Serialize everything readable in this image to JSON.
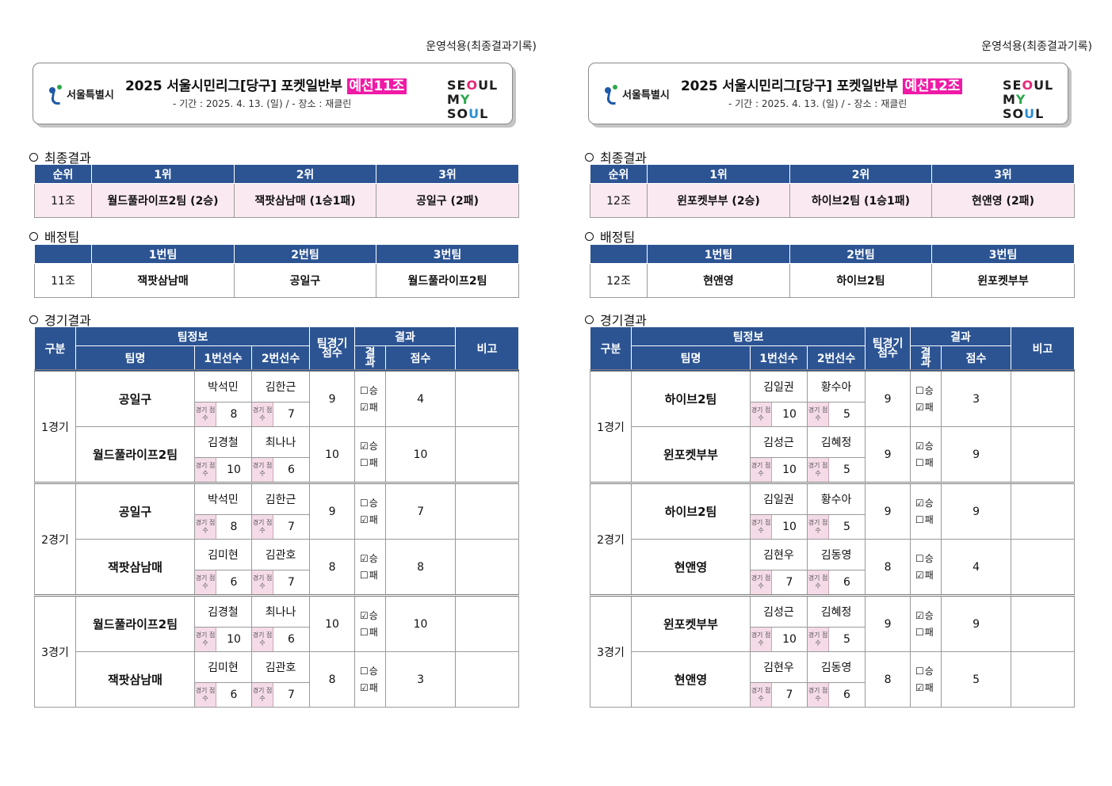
{
  "sheets": [
    {
      "usage_note": "운영석용(최종결과기록)",
      "logo_name": "서울특별시",
      "title_main": "2025  서울시민리그[당구]  포켓일반부 ",
      "title_tag": "예선11조",
      "subtitle": "-  기간  :  2025.  4.  13.  (일)  /  -  장소  :  재클린",
      "brand": {
        "row1": [
          "SE",
          "O",
          "UL"
        ],
        "row2": [
          "M",
          "Y",
          " SO",
          "U",
          "L"
        ]
      },
      "section_final": "최종결과",
      "final": {
        "headers": [
          "순위",
          "1위",
          "2위",
          "3위"
        ],
        "group": "11조",
        "ranks": [
          "월드풀라이프2팀  (2승)",
          "잭팟삼남매  (1승1패)",
          "공일구  (2패)"
        ]
      },
      "section_assign": "배정팀",
      "assign": {
        "headers": [
          "",
          "1번팀",
          "2번팀",
          "3번팀"
        ],
        "group": "11조",
        "teams": [
          "잭팟삼남매",
          "공일구",
          "월드풀라이프2팀"
        ]
      },
      "section_games": "경기결과",
      "games_headers": {
        "category": "구분",
        "team_info": "팀정보",
        "team_name": "팀명",
        "player1": "1번선수",
        "player2": "2번선수",
        "team_score": "팀경기 점수",
        "result": "결과",
        "result_sub": "결과",
        "score": "점수",
        "note": "비고",
        "score_badge": "경기 점수",
        "win": "승",
        "loss": "패"
      },
      "games": [
        {
          "label": "1경기",
          "teams": [
            {
              "name": "공일구",
              "p1": "박석민",
              "p2": "김한근",
              "s1": "8",
              "s2": "7",
              "team_score": "9",
              "win": false,
              "score": "4"
            },
            {
              "name": "월드풀라이프2팀",
              "p1": "김경철",
              "p2": "최나나",
              "s1": "10",
              "s2": "6",
              "team_score": "10",
              "win": true,
              "score": "10"
            }
          ]
        },
        {
          "label": "2경기",
          "teams": [
            {
              "name": "공일구",
              "p1": "박석민",
              "p2": "김한근",
              "s1": "8",
              "s2": "7",
              "team_score": "9",
              "win": false,
              "score": "7"
            },
            {
              "name": "잭팟삼남매",
              "p1": "김미현",
              "p2": "김관호",
              "s1": "6",
              "s2": "7",
              "team_score": "8",
              "win": true,
              "score": "8"
            }
          ]
        },
        {
          "label": "3경기",
          "teams": [
            {
              "name": "월드풀라이프2팀",
              "p1": "김경철",
              "p2": "최나나",
              "s1": "10",
              "s2": "6",
              "team_score": "10",
              "win": true,
              "score": "10"
            },
            {
              "name": "잭팟삼남매",
              "p1": "김미현",
              "p2": "김관호",
              "s1": "6",
              "s2": "7",
              "team_score": "8",
              "win": false,
              "score": "3"
            }
          ]
        }
      ]
    },
    {
      "usage_note": "운영석용(최종결과기록)",
      "logo_name": "서울특별시",
      "title_main": "2025  서울시민리그[당구]  포켓일반부 ",
      "title_tag": "예선12조",
      "subtitle": "-  기간  :  2025.  4.  13.  (일)  /  -  장소  :  재클린",
      "brand": {
        "row1": [
          "SE",
          "O",
          "UL"
        ],
        "row2": [
          "M",
          "Y",
          " SO",
          "U",
          "L"
        ]
      },
      "section_final": "최종결과",
      "final": {
        "headers": [
          "순위",
          "1위",
          "2위",
          "3위"
        ],
        "group": "12조",
        "ranks": [
          "윈포켓부부  (2승)",
          "하이브2팀  (1승1패)",
          "현앤영  (2패)"
        ]
      },
      "section_assign": "배정팀",
      "assign": {
        "headers": [
          "",
          "1번팀",
          "2번팀",
          "3번팀"
        ],
        "group": "12조",
        "teams": [
          "현앤영",
          "하이브2팀",
          "윈포켓부부"
        ]
      },
      "section_games": "경기결과",
      "games_headers": {
        "category": "구분",
        "team_info": "팀정보",
        "team_name": "팀명",
        "player1": "1번선수",
        "player2": "2번선수",
        "team_score": "팀경기 점수",
        "result": "결과",
        "result_sub": "결과",
        "score": "점수",
        "note": "비고",
        "score_badge": "경기 점수",
        "win": "승",
        "loss": "패"
      },
      "games": [
        {
          "label": "1경기",
          "teams": [
            {
              "name": "하이브2팀",
              "p1": "김일권",
              "p2": "황수아",
              "s1": "10",
              "s2": "5",
              "team_score": "9",
              "win": false,
              "score": "3"
            },
            {
              "name": "윈포켓부부",
              "p1": "김성근",
              "p2": "김혜정",
              "s1": "10",
              "s2": "5",
              "team_score": "9",
              "win": true,
              "score": "9"
            }
          ]
        },
        {
          "label": "2경기",
          "teams": [
            {
              "name": "하이브2팀",
              "p1": "김일권",
              "p2": "황수아",
              "s1": "10",
              "s2": "5",
              "team_score": "9",
              "win": true,
              "score": "9"
            },
            {
              "name": "현앤영",
              "p1": "김현우",
              "p2": "김동영",
              "s1": "7",
              "s2": "6",
              "team_score": "8",
              "win": false,
              "score": "4"
            }
          ]
        },
        {
          "label": "3경기",
          "teams": [
            {
              "name": "윈포켓부부",
              "p1": "김성근",
              "p2": "김혜정",
              "s1": "10",
              "s2": "5",
              "team_score": "9",
              "win": true,
              "score": "9"
            },
            {
              "name": "현앤영",
              "p1": "김현우",
              "p2": "김동영",
              "s1": "7",
              "s2": "6",
              "team_score": "8",
              "win": false,
              "score": "5"
            }
          ]
        }
      ]
    }
  ]
}
